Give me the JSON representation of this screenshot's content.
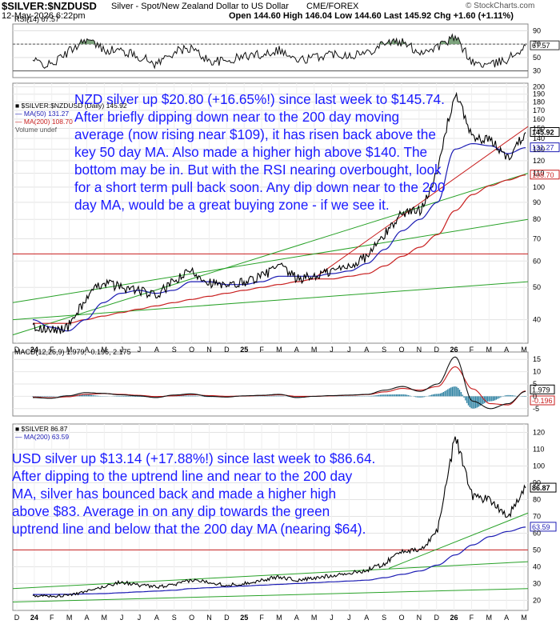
{
  "header": {
    "symbol": "$SILVER:$NZDUSD",
    "description": "Silver - Spot/New Zealand Dollar to US Dollar",
    "exchange": "CME/FOREX",
    "date": "12-May-2026 6:22pm",
    "stats": "Open 144.60  High 146.04  Low 144.60  Last 145.92  Chg +1.60 (+1.11%)",
    "watermark": "© StockCharts.com"
  },
  "colors": {
    "price": "#000000",
    "ma50": "#1c1cb4",
    "ma200": "#c81e1e",
    "trendline": "#27a127",
    "redline": "#c81e1e",
    "rsi_fill": "#6f9a6f",
    "macd_hist": "#2a7fa0",
    "annotation": "#1a1aff"
  },
  "annotations": {
    "nzd": "NZD silver up $20.80 (+16.65%!) since last week to $145.74. After briefly dipping down near to the 200 day moving average (now rising near $109), it has risen back above the key 50 day MA. Also made a higher high above $140. The bottom may be in. But with the RSI nearing overbought, look for a short term pull back soon. Any dip down near to the 200 day MA, would be a great buying zone - if we see it.",
    "usd": "USD silver up $13.14 (+17.88%!) since last week to $86.64. After dipping to the uptrend line and near to the 200 day MA, silver has bounced back and made a higher high above $83. Average in on any dip towards the green uptrend line and below that the 200 day MA (nearing $64)."
  },
  "chart_data": [
    {
      "type": "line",
      "panel": "RSI",
      "legend": [
        "RSI(14) 67.57"
      ],
      "y_ticks": [
        30,
        50,
        70,
        90
      ],
      "ylim": [
        20,
        100
      ],
      "last_value_label": "67.57",
      "x": [
        "2024-01",
        "2024-02",
        "2024-03",
        "2024-04",
        "2024-05",
        "2024-06",
        "2024-07",
        "2024-08",
        "2024-09",
        "2024-10",
        "2024-11",
        "2024-12",
        "2025-01",
        "2025-02",
        "2025-03",
        "2025-04",
        "2025-05",
        "2025-06",
        "2025-07",
        "2025-08",
        "2025-09",
        "2025-10",
        "2025-11",
        "2025-12",
        "2026-01",
        "2026-02",
        "2026-03",
        "2026-04",
        "2026-05"
      ],
      "series": [
        {
          "values": [
            45,
            38,
            58,
            78,
            62,
            60,
            52,
            40,
            58,
            64,
            45,
            44,
            52,
            55,
            62,
            45,
            50,
            56,
            54,
            57,
            74,
            72,
            58,
            66,
            80,
            42,
            38,
            48,
            67.57
          ]
        }
      ]
    },
    {
      "type": "line",
      "panel": "NZD price",
      "legend": [
        "$SILVER:$NZDUSD (Daily) 145.92",
        "MA(50) 131.27",
        "MA(200) 108.70",
        "Volume undef"
      ],
      "y_scale": "log",
      "y_ticks": [
        40,
        50,
        60,
        70,
        80,
        90,
        100,
        110,
        120,
        130,
        140,
        150,
        160,
        170,
        180,
        190,
        200
      ],
      "ylim": [
        34,
        205
      ],
      "last_value_labels": [
        "145.92",
        "131.27",
        "108.70"
      ],
      "x_tick_labels": [
        "D",
        "24",
        "F",
        "M",
        "A",
        "M",
        "J",
        "J",
        "A",
        "S",
        "O",
        "N",
        "D",
        "25",
        "F",
        "M",
        "A",
        "M",
        "J",
        "J",
        "A",
        "S",
        "O",
        "N",
        "D",
        "26",
        "F",
        "M",
        "A",
        "M"
      ],
      "x": [
        "2024-01",
        "2024-02",
        "2024-03",
        "2024-04",
        "2024-05",
        "2024-06",
        "2024-07",
        "2024-08",
        "2024-09",
        "2024-10",
        "2024-11",
        "2024-12",
        "2025-01",
        "2025-02",
        "2025-03",
        "2025-04",
        "2025-05",
        "2025-06",
        "2025-07",
        "2025-08",
        "2025-09",
        "2025-10",
        "2025-11",
        "2025-12",
        "2026-01",
        "2026-02",
        "2026-03",
        "2026-04",
        "2026-05"
      ],
      "series": [
        {
          "name": "$SILVER:$NZDUSD",
          "values": [
            38,
            37,
            38,
            46,
            52,
            50,
            49,
            47,
            52,
            56,
            52,
            50,
            52,
            54,
            58,
            53,
            54,
            56,
            58,
            62,
            72,
            84,
            85,
            110,
            190,
            140,
            138,
            122,
            145.92
          ]
        },
        {
          "name": "MA(50)",
          "values": [
            40,
            38,
            37,
            40,
            45,
            48,
            49,
            48,
            49,
            52,
            52,
            51,
            51,
            52,
            54,
            54,
            54,
            55,
            56,
            59,
            65,
            74,
            80,
            90,
            130,
            135,
            133,
            126,
            131.27
          ]
        },
        {
          "name": "MA(200)",
          "values": [
            39,
            39,
            39,
            40,
            41,
            42,
            43,
            44,
            45,
            46,
            47,
            48,
            49,
            50,
            51,
            52,
            53,
            53,
            54,
            55,
            58,
            62,
            66,
            72,
            85,
            95,
            101,
            105,
            108.7
          ]
        }
      ],
      "horizontal_line": 63
    },
    {
      "type": "line",
      "panel": "MACD",
      "legend": [
        "MACD(12,26,9) 1.979, -0.196, 2.175"
      ],
      "y_ticks": [
        -5,
        0,
        5,
        10,
        15
      ],
      "ylim": [
        -8,
        18
      ],
      "last_value_labels": [
        "1.979",
        "-0.196"
      ],
      "x": [
        "2024-01",
        "2024-02",
        "2024-03",
        "2024-04",
        "2024-05",
        "2024-06",
        "2024-07",
        "2024-08",
        "2024-09",
        "2024-10",
        "2024-11",
        "2024-12",
        "2025-01",
        "2025-02",
        "2025-03",
        "2025-04",
        "2025-05",
        "2025-06",
        "2025-07",
        "2025-08",
        "2025-09",
        "2025-10",
        "2025-11",
        "2025-12",
        "2026-01",
        "2026-02",
        "2026-03",
        "2026-04",
        "2026-05"
      ],
      "series": [
        {
          "name": "MACD",
          "values": [
            -0.5,
            -0.8,
            0.2,
            1.5,
            1.2,
            0.6,
            0.2,
            -0.5,
            0.5,
            1.0,
            0,
            -0.3,
            0.2,
            0.4,
            0.8,
            -0.5,
            0,
            0.3,
            0.5,
            0.8,
            2.5,
            4,
            2,
            5,
            16,
            -2,
            -5,
            -3,
            1.979
          ]
        },
        {
          "name": "Signal",
          "values": [
            -0.3,
            -0.6,
            -0.2,
            0.8,
            1.1,
            0.8,
            0.4,
            -0.1,
            0.2,
            0.7,
            0.3,
            0,
            0.1,
            0.3,
            0.6,
            0,
            0,
            0.2,
            0.4,
            0.7,
            1.8,
            3.2,
            2.5,
            4,
            12,
            3,
            -3,
            -3.5,
            2.175
          ]
        }
      ]
    },
    {
      "type": "line",
      "panel": "USD price",
      "legend": [
        "$SILVER 86.87",
        "MA(200) 63.59"
      ],
      "y_ticks": [
        20,
        30,
        40,
        50,
        60,
        70,
        80,
        90,
        100,
        110,
        120
      ],
      "ylim": [
        14,
        125
      ],
      "last_value_labels": [
        "86.87",
        "63.59"
      ],
      "x_tick_labels": [
        "D",
        "24",
        "F",
        "M",
        "A",
        "M",
        "J",
        "J",
        "A",
        "S",
        "O",
        "N",
        "D",
        "25",
        "F",
        "M",
        "A",
        "M",
        "J",
        "J",
        "A",
        "S",
        "O",
        "N",
        "D",
        "26",
        "F",
        "M",
        "A",
        "M"
      ],
      "x": [
        "2024-01",
        "2024-02",
        "2024-03",
        "2024-04",
        "2024-05",
        "2024-06",
        "2024-07",
        "2024-08",
        "2024-09",
        "2024-10",
        "2024-11",
        "2024-12",
        "2025-01",
        "2025-02",
        "2025-03",
        "2025-04",
        "2025-05",
        "2025-06",
        "2025-07",
        "2025-08",
        "2025-09",
        "2025-10",
        "2025-11",
        "2025-12",
        "2026-01",
        "2026-02",
        "2026-03",
        "2026-04",
        "2026-05"
      ],
      "series": [
        {
          "name": "$SILVER",
          "values": [
            23,
            22.5,
            23,
            25,
            28,
            31,
            29,
            28,
            29,
            32,
            31,
            29,
            30,
            32,
            34,
            32,
            33,
            35,
            36,
            38,
            42,
            50,
            49,
            62,
            118,
            82,
            80,
            70,
            86.87
          ]
        },
        {
          "name": "MA(200)",
          "values": [
            23.5,
            23.5,
            23.6,
            23.8,
            24,
            24.5,
            25,
            25.5,
            26,
            27,
            27.5,
            28,
            28.5,
            29,
            29.5,
            30,
            30.5,
            31,
            31.5,
            32,
            33.5,
            35.5,
            37.5,
            41,
            47,
            53,
            58,
            61,
            63.59
          ]
        }
      ],
      "horizontal_line": 50
    }
  ]
}
